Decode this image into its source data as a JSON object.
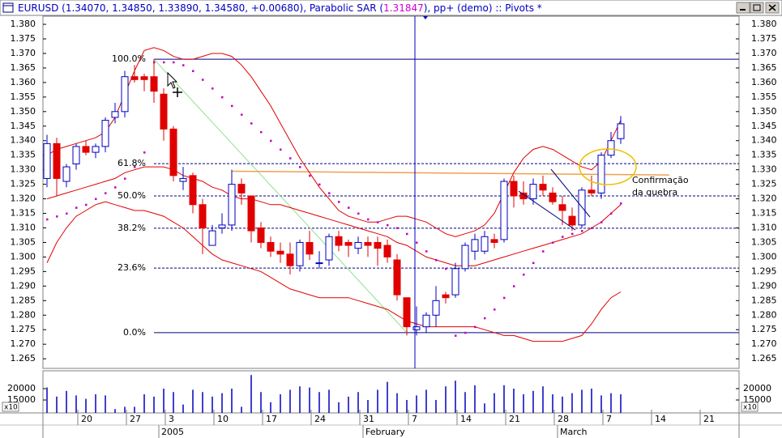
{
  "title_parts": [
    "EURUSD (1.34070, 1.34850, 1.33890, 1.34580, +0.00680), Parabolic SAR (",
    "1.31847",
    "), pp+ (demo) :: Pivots *"
  ],
  "chart_data": {
    "type": "candlestick",
    "categories": [
      null,
      null,
      null,
      "20",
      null,
      null,
      null,
      null,
      "27",
      null,
      null,
      null,
      "3",
      null,
      null,
      null,
      null,
      "10",
      null,
      null,
      null,
      null,
      "17",
      null,
      null,
      null,
      null,
      "24",
      null,
      null,
      null,
      null,
      "31",
      null,
      null,
      null,
      null,
      "7",
      null,
      null,
      null,
      null,
      "14",
      null,
      null,
      null,
      null,
      "21",
      null,
      null,
      null,
      null,
      "28",
      null,
      null,
      null,
      null,
      "7",
      null,
      null,
      null,
      null,
      "14",
      null,
      null,
      null,
      null,
      "21",
      null
    ],
    "month_labels": [
      null,
      null,
      null,
      null,
      null,
      null,
      null,
      null,
      null,
      null,
      null,
      null,
      "2005",
      null,
      null,
      null,
      null,
      null,
      null,
      null,
      null,
      null,
      null,
      null,
      null,
      null,
      null,
      null,
      null,
      null,
      null,
      null,
      null,
      "February",
      null,
      null,
      null,
      null,
      null,
      null,
      null,
      null,
      null,
      null,
      null,
      null,
      null,
      null,
      null,
      null,
      null,
      null,
      null,
      "March",
      null,
      null,
      null,
      null,
      null,
      null,
      null,
      null,
      null,
      null,
      null,
      null,
      null,
      null,
      null
    ],
    "open": [
      1.327,
      1.339,
      1.326,
      1.332,
      1.338,
      1.336,
      1.338,
      1.348,
      1.35,
      1.362,
      1.362,
      1.362,
      1.356,
      1.344,
      1.326,
      1.328,
      1.318,
      1.304,
      1.31,
      1.311,
      1.325,
      1.321,
      1.31,
      1.305,
      1.302,
      1.301,
      1.297,
      1.305,
      1.298,
      1.299,
      1.307,
      1.305,
      1.303,
      1.305,
      1.305,
      1.304,
      1.299,
      1.286,
      1.275,
      1.276,
      1.28,
      1.287,
      1.287,
      1.296,
      1.302,
      1.302,
      1.306,
      1.306,
      1.326,
      1.322,
      1.32,
      1.325,
      1.322,
      1.318,
      1.314,
      1.311,
      1.323,
      1.322,
      1.335,
      1.3407,
      null,
      null,
      null,
      null,
      null,
      null,
      null,
      null,
      null
    ],
    "high": [
      1.342,
      1.341,
      1.332,
      1.339,
      1.34,
      1.339,
      1.348,
      1.353,
      1.364,
      1.366,
      1.363,
      1.368,
      1.358,
      1.345,
      1.331,
      1.329,
      1.32,
      1.311,
      1.315,
      1.33,
      1.327,
      1.321,
      1.312,
      1.307,
      1.305,
      1.305,
      1.306,
      1.309,
      1.302,
      1.308,
      1.309,
      1.306,
      1.307,
      1.307,
      1.307,
      1.306,
      1.301,
      1.286,
      1.283,
      1.281,
      1.29,
      1.288,
      1.298,
      1.305,
      1.308,
      1.309,
      1.308,
      1.327,
      1.328,
      1.326,
      1.327,
      1.328,
      1.324,
      1.321,
      1.317,
      1.324,
      1.328,
      1.336,
      1.343,
      1.3485,
      null,
      null,
      null,
      null,
      null,
      null,
      null,
      null,
      null
    ],
    "low": [
      1.324,
      1.321,
      1.324,
      1.33,
      1.335,
      1.334,
      1.336,
      1.346,
      1.348,
      1.36,
      1.357,
      1.353,
      1.34,
      1.326,
      1.323,
      1.315,
      1.301,
      1.304,
      1.308,
      1.309,
      1.318,
      1.305,
      1.303,
      1.3,
      1.298,
      1.294,
      1.295,
      1.299,
      1.296,
      1.297,
      1.302,
      1.3,
      1.301,
      1.3,
      1.297,
      1.298,
      1.285,
      1.273,
      1.273,
      1.274,
      1.276,
      1.284,
      1.286,
      1.295,
      1.299,
      1.301,
      1.303,
      1.305,
      1.317,
      1.318,
      1.318,
      1.321,
      1.318,
      1.311,
      1.309,
      1.31,
      1.321,
      1.32,
      1.334,
      1.3389,
      null,
      null,
      null,
      null,
      null,
      null,
      null,
      null,
      null
    ],
    "close": [
      1.339,
      1.327,
      1.331,
      1.338,
      1.336,
      1.338,
      1.347,
      1.35,
      1.362,
      1.361,
      1.361,
      1.357,
      1.344,
      1.328,
      1.327,
      1.318,
      1.31,
      1.309,
      1.311,
      1.325,
      1.322,
      1.309,
      1.305,
      1.302,
      1.301,
      1.297,
      1.305,
      1.301,
      1.298,
      1.307,
      1.304,
      1.304,
      1.305,
      1.304,
      1.303,
      1.3,
      1.287,
      1.276,
      1.276,
      1.28,
      1.285,
      1.286,
      1.296,
      1.304,
      1.306,
      1.307,
      1.305,
      1.326,
      1.321,
      1.32,
      1.325,
      1.323,
      1.319,
      1.316,
      1.311,
      1.323,
      1.322,
      1.335,
      1.34,
      1.3458,
      null,
      null,
      null,
      null,
      null,
      null,
      null,
      null,
      null
    ],
    "up_color": "#0000c0",
    "down_color": "#e00000",
    "ylim": [
      1.2617,
      1.3828
    ],
    "yticks": [
      {
        "value": 1.265,
        "label": "1.265"
      },
      {
        "value": 1.27,
        "label": "1.270"
      },
      {
        "value": 1.275,
        "label": "1.275"
      },
      {
        "value": 1.28,
        "label": "1.280"
      },
      {
        "value": 1.285,
        "label": "1.285"
      },
      {
        "value": 1.29,
        "label": "1.290"
      },
      {
        "value": 1.295,
        "label": "1.295"
      },
      {
        "value": 1.3,
        "label": "1.300"
      },
      {
        "value": 1.305,
        "label": "1.305"
      },
      {
        "value": 1.31,
        "label": "1.310"
      },
      {
        "value": 1.315,
        "label": "1.315"
      },
      {
        "value": 1.32,
        "label": "1.320"
      },
      {
        "value": 1.325,
        "label": "1.325"
      },
      {
        "value": 1.33,
        "label": "1.330"
      },
      {
        "value": 1.335,
        "label": "1.335"
      },
      {
        "value": 1.34,
        "label": "1.340"
      },
      {
        "value": 1.345,
        "label": "1.345"
      },
      {
        "value": 1.35,
        "label": "1.350"
      },
      {
        "value": 1.355,
        "label": "1.355"
      },
      {
        "value": 1.36,
        "label": "1.360"
      },
      {
        "value": 1.365,
        "label": "1.365"
      },
      {
        "value": 1.37,
        "label": "1.370"
      },
      {
        "value": 1.375,
        "label": "1.375"
      },
      {
        "value": 1.38,
        "label": "1.380"
      }
    ],
    "bands": [
      {
        "color": "#e00000",
        "values": [
          1.335,
          1.337,
          1.338,
          1.339,
          1.34,
          1.341,
          1.343,
          1.348,
          1.356,
          1.364,
          1.371,
          1.372,
          1.371,
          1.369,
          1.368,
          1.368,
          1.369,
          1.37,
          1.37,
          1.369,
          1.366,
          1.362,
          1.357,
          1.352,
          1.346,
          1.34,
          1.334,
          1.329,
          1.324,
          1.32,
          1.316,
          1.314,
          1.313,
          1.312,
          1.312,
          1.313,
          1.314,
          1.314,
          1.313,
          1.312,
          1.31,
          1.308,
          1.307,
          1.308,
          1.309,
          1.311,
          1.315,
          1.322,
          1.329,
          1.334,
          1.337,
          1.338,
          1.337,
          1.335,
          1.333,
          1.331,
          1.33,
          1.333,
          1.34,
          1.347,
          null,
          null,
          null,
          null,
          null,
          null,
          null,
          null,
          null
        ]
      },
      {
        "color": "#e00000",
        "values": [
          1.32,
          1.321,
          1.322,
          1.323,
          1.324,
          1.325,
          1.326,
          1.327,
          1.329,
          1.33,
          1.331,
          1.331,
          1.331,
          1.33,
          1.328,
          1.327,
          1.326,
          1.324,
          1.323,
          1.321,
          1.32,
          1.32,
          1.319,
          1.318,
          1.318,
          1.317,
          1.316,
          1.315,
          1.314,
          1.313,
          1.312,
          1.311,
          1.31,
          1.309,
          1.308,
          1.307,
          1.305,
          1.304,
          1.302,
          1.3,
          1.299,
          1.298,
          1.297,
          1.297,
          1.297,
          1.298,
          1.299,
          1.3,
          1.301,
          1.302,
          1.303,
          1.304,
          1.305,
          1.306,
          1.307,
          1.308,
          1.31,
          1.312,
          1.315,
          1.318,
          null,
          null,
          null,
          null,
          null,
          null,
          null,
          null,
          null
        ]
      },
      {
        "color": "#e00000",
        "values": [
          1.298,
          1.305,
          1.31,
          1.314,
          1.316,
          1.318,
          1.319,
          1.318,
          1.317,
          1.316,
          1.316,
          1.315,
          1.314,
          1.312,
          1.31,
          1.307,
          1.304,
          1.301,
          1.299,
          1.298,
          1.297,
          1.296,
          1.295,
          1.293,
          1.291,
          1.289,
          1.288,
          1.287,
          1.286,
          1.286,
          1.286,
          1.286,
          1.285,
          1.284,
          1.283,
          1.282,
          1.28,
          1.278,
          1.277,
          1.276,
          1.276,
          1.276,
          1.276,
          1.276,
          1.276,
          1.275,
          1.274,
          1.273,
          1.273,
          1.272,
          1.271,
          1.271,
          1.271,
          1.271,
          1.272,
          1.273,
          1.277,
          1.282,
          1.286,
          1.288,
          null,
          null,
          null,
          null,
          null,
          null,
          null,
          null,
          null
        ]
      }
    ],
    "sar": {
      "color": "#c000c0",
      "values": [
        1.313,
        1.314,
        1.315,
        1.317,
        1.318,
        1.32,
        1.322,
        1.324,
        1.327,
        1.331,
        1.336,
        1.367,
        1.367,
        1.367,
        1.366,
        1.364,
        1.361,
        1.358,
        1.355,
        1.352,
        1.349,
        1.346,
        1.343,
        1.34,
        1.337,
        1.334,
        1.331,
        1.328,
        1.325,
        1.322,
        1.319,
        1.317,
        1.315,
        1.313,
        1.312,
        1.311,
        1.31,
        1.308,
        1.305,
        1.302,
        1.299,
        1.296,
        1.273,
        1.274,
        1.276,
        1.279,
        1.282,
        1.286,
        1.29,
        1.294,
        1.298,
        1.302,
        1.305,
        1.307,
        1.308,
        1.309,
        1.31,
        1.312,
        1.315,
        1.31847,
        null,
        null,
        null,
        null,
        null,
        null,
        null,
        null,
        null
      ]
    },
    "fib": {
      "high": 1.368,
      "low": 1.274,
      "color": "#000080",
      "levels": [
        100,
        61.8,
        50,
        38.2,
        23.6,
        0
      ],
      "labels": [
        "100.0%",
        "61.8%",
        "50.0%",
        "38.2%",
        "23.6%",
        "0.0%"
      ]
    },
    "trend_line": {
      "color": "#f0a050",
      "values": [
        1.3295,
        1.3282
      ]
    },
    "annotation": [
      "Confirmação",
      "da quebra"
    ],
    "volume": {
      "type": "bar",
      "color": "#0000c0",
      "values": [
        20500,
        16500,
        19000,
        17000,
        15500,
        17500,
        17000,
        11000,
        12000,
        12000,
        17500,
        16500,
        20000,
        18500,
        13000,
        19500,
        18500,
        16500,
        18000,
        20000,
        12000,
        26000,
        18500,
        14000,
        17500,
        19500,
        21000,
        20500,
        18500,
        19500,
        14000,
        16500,
        18500,
        15000,
        19500,
        23000,
        18000,
        15000,
        17000,
        19500,
        15000,
        21000,
        23500,
        18500,
        21500,
        13500,
        18000,
        21500,
        20000,
        17500,
        19000,
        21000,
        17500,
        16500,
        18000,
        19500,
        20000,
        17000,
        18000,
        17500,
        null,
        null,
        null,
        null,
        null,
        null,
        null,
        null,
        null
      ],
      "ylim": [
        9300,
        27860
      ],
      "yticks": [
        15000,
        20000
      ],
      "multiplier_label": "x10"
    }
  }
}
